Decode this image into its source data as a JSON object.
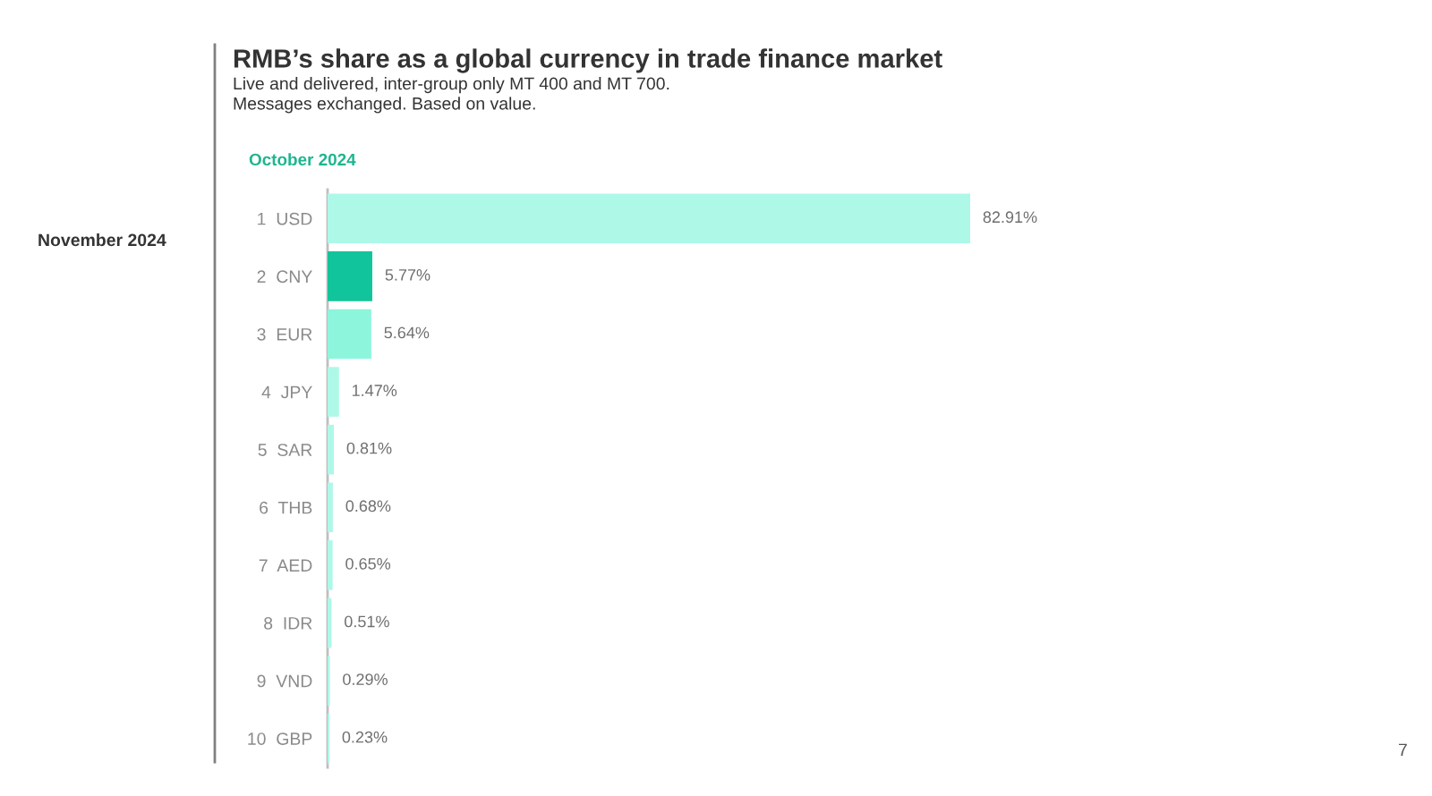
{
  "chart_data": {
    "type": "bar",
    "orientation": "horizontal",
    "title": "RMB’s share as a global currency in trade finance market",
    "subtitle": "Live and delivered, inter-group only MT 400 and MT 700.\nMessages exchanged. Based on value.",
    "categories": [
      "1  USD",
      "2  CNY",
      "3  EUR",
      "4  JPY",
      "5  SAR",
      "6  THB",
      "7  AED",
      "8  IDR",
      "9  VND",
      "10  GBP"
    ],
    "values": [
      82.91,
      5.77,
      5.64,
      1.47,
      0.81,
      0.68,
      0.65,
      0.51,
      0.29,
      0.23
    ],
    "colors": [
      "#aef8e8",
      "#12c49b",
      "#8df5dc",
      "#aef8e8",
      "#aef8e8",
      "#aef8e8",
      "#aef8e8",
      "#aef8e8",
      "#aef8e8",
      "#aef8e8"
    ],
    "value_labels": [
      "82.91%",
      "5.77%",
      "5.64%",
      "1.47%",
      "0.81%",
      "0.68%",
      "0.65%",
      "0.51%",
      "0.29%",
      "0.23%"
    ],
    "tick_labels": "y",
    "grid": false,
    "legend": false,
    "annotations": [
      "October 2024",
      "November 2024",
      "7"
    ]
  }
}
